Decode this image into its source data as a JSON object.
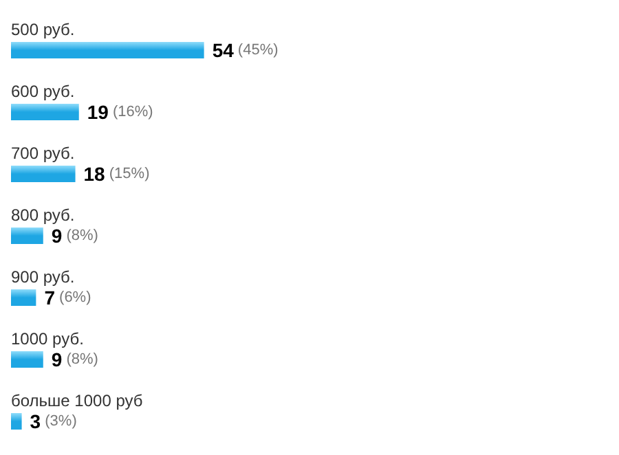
{
  "chart_data": {
    "type": "bar",
    "orientation": "horizontal",
    "categories": [
      "500 руб.",
      "600 руб.",
      "700 руб.",
      "800 руб.",
      "900 руб.",
      "1000 руб.",
      "больше 1000 руб"
    ],
    "values": [
      54,
      19,
      18,
      9,
      7,
      9,
      3
    ],
    "value_labels": [
      "54 (45%)",
      "19 (16%)",
      "18 (15%)",
      "9 (8%)",
      "7 (6%)",
      "9 (8%)",
      "3 (3%)"
    ],
    "color": "#1ea6e3"
  }
}
